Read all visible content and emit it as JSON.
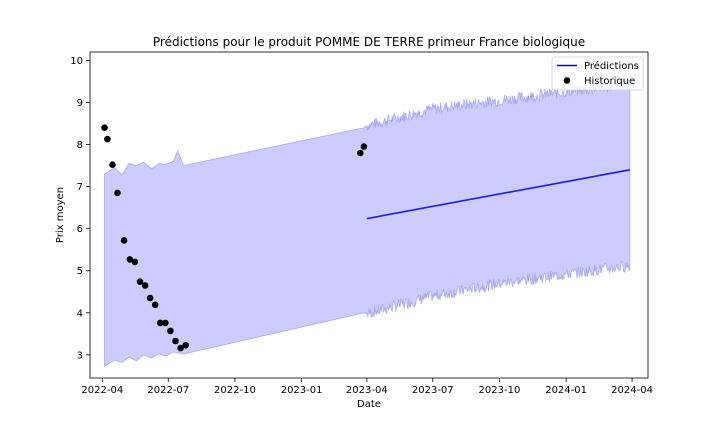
{
  "chart_data": {
    "type": "line",
    "title": "Prédictions pour le produit POMME DE TERRE primeur France biologique",
    "xlabel": "Date",
    "ylabel": "Prix moyen",
    "xlim": [
      "2022-03-15",
      "2024-04-23"
    ],
    "ylim": [
      2.45,
      10.2
    ],
    "x_ticks": [
      "2022-04",
      "2022-07",
      "2022-10",
      "2023-01",
      "2023-04",
      "2023-07",
      "2023-10",
      "2024-01",
      "2024-04"
    ],
    "y_ticks": [
      3,
      4,
      5,
      6,
      7,
      8,
      9,
      10
    ],
    "grid": false,
    "legend": {
      "position": "top-right",
      "entries": [
        {
          "label": "Prédictions",
          "marker": "line",
          "color": "#0000ff"
        },
        {
          "label": "Historique",
          "marker": "dot",
          "color": "#000000"
        }
      ]
    },
    "colors": {
      "prediction_line": "#1a1aff",
      "interval_fill": "#ccccff",
      "interval_edge": "#a8a8f8",
      "history_points": "#000000"
    },
    "series": [
      {
        "name": "Prédictions",
        "x": [
          "2023-04-01",
          "2024-03-29"
        ],
        "y": [
          6.24,
          7.4
        ]
      },
      {
        "name": "Historique",
        "x": [
          "2022-04-04",
          "2022-04-08",
          "2022-04-15",
          "2022-04-22",
          "2022-05-01",
          "2022-05-09",
          "2022-05-16",
          "2022-05-23",
          "2022-05-30",
          "2022-06-06",
          "2022-06-13",
          "2022-06-20",
          "2022-06-27",
          "2022-07-04",
          "2022-07-11",
          "2022-07-18",
          "2022-07-25",
          "2023-03-23",
          "2023-03-28"
        ],
        "y": [
          8.4,
          8.13,
          7.52,
          6.85,
          5.72,
          5.27,
          5.21,
          4.74,
          4.65,
          4.35,
          4.19,
          3.76,
          3.76,
          3.57,
          3.33,
          3.16,
          3.23,
          7.8,
          7.95
        ]
      }
    ],
    "interval": {
      "upper": {
        "x": [
          "2022-04-04",
          "2022-04-18",
          "2022-04-28",
          "2022-05-08",
          "2022-05-18",
          "2022-05-28",
          "2022-06-08",
          "2022-06-18",
          "2022-06-28",
          "2022-07-08",
          "2022-07-14",
          "2022-07-22",
          "2023-03-28",
          "2023-04-01",
          "2023-07-01",
          "2023-10-01",
          "2024-01-01",
          "2024-03-29"
        ],
        "y": [
          7.3,
          7.45,
          7.28,
          7.55,
          7.5,
          7.58,
          7.42,
          7.55,
          7.53,
          7.6,
          7.85,
          7.5,
          8.4,
          8.45,
          8.85,
          9.05,
          9.25,
          9.45
        ]
      },
      "lower": {
        "x": [
          "2022-04-04",
          "2022-04-18",
          "2022-04-28",
          "2022-05-08",
          "2022-05-18",
          "2022-05-28",
          "2022-06-08",
          "2022-06-18",
          "2022-06-28",
          "2022-07-08",
          "2022-07-14",
          "2022-07-22",
          "2023-03-28",
          "2023-04-01",
          "2023-07-01",
          "2023-10-01",
          "2024-01-01",
          "2024-03-29"
        ],
        "y": [
          2.73,
          2.88,
          2.82,
          2.95,
          2.86,
          3.0,
          2.93,
          3.02,
          2.97,
          3.07,
          3.05,
          3.02,
          4.0,
          3.98,
          4.4,
          4.7,
          4.92,
          5.12
        ]
      }
    }
  }
}
